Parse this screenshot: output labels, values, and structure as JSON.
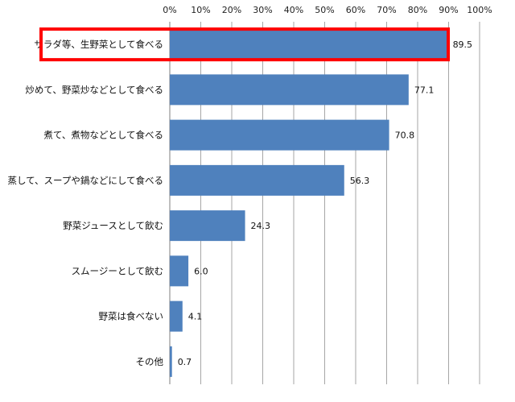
{
  "chart_data": {
    "type": "bar",
    "orientation": "horizontal",
    "categories": [
      "サラダ等、生野菜として食べる",
      "炒めて、野菜炒などとして食べる",
      "煮て、煮物などとして食べる",
      "蒸して、スープや鍋などにして食べる",
      "野菜ジュースとして飲む",
      "スムージーとして飲む",
      "野菜は食べない",
      "その他"
    ],
    "values": [
      89.5,
      77.1,
      70.8,
      56.3,
      24.3,
      6.0,
      4.1,
      0.7
    ],
    "value_labels": [
      "89.5",
      "77.1",
      "70.8",
      "56.3",
      "24.3",
      "6.0",
      "4.1",
      "0.7"
    ],
    "xlim": [
      0,
      100
    ],
    "x_ticks": [
      "0%",
      "10%",
      "20%",
      "30%",
      "40%",
      "50%",
      "60%",
      "70%",
      "80%",
      "90%",
      "100%"
    ],
    "x_axis_position": "top",
    "grid": true,
    "highlighted_category": "サラダ等、生野菜として食べる",
    "colors": {
      "bar": "#4f81bd",
      "grid": "#a6a6a6",
      "highlight": "#ff0000"
    },
    "title": "",
    "xlabel": "",
    "ylabel": ""
  }
}
